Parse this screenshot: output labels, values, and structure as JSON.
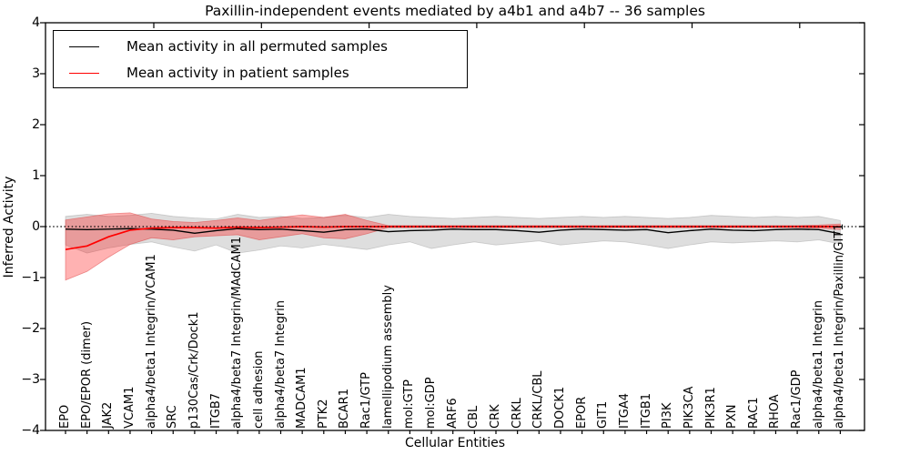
{
  "title": "Paxillin-independent events mediated by a4b1 and a4b7 -- 36 samples",
  "axes": {
    "x_label": "Cellular Entities",
    "y_label": "Inferred Activity",
    "y_tick_labels": [
      "4",
      "3",
      "2",
      "1",
      "0",
      "−1",
      "−2",
      "−3",
      "−4"
    ]
  },
  "legend": {
    "entries": [
      {
        "label": "Mean activity in all permuted samples",
        "color": "#000000"
      },
      {
        "label": "Mean activity in patient samples",
        "color": "#ff0000"
      }
    ]
  },
  "colors": {
    "permuted_line": "#000000",
    "patient_line": "#ff0000",
    "permuted_band_fill": "#000000",
    "permuted_band_opacity": 0.13,
    "permuted_band_edge": "#aaaaaa",
    "patient_band_fill": "#ff0000",
    "patient_band_opacity": 0.3,
    "patient_band_edge": "#dd4444",
    "zero_line": "#000000",
    "frame": "#000000"
  },
  "chart_data": {
    "type": "line",
    "title": "Paxillin-independent events mediated by a4b1 and a4b7 -- 36 samples",
    "xlabel": "Cellular Entities",
    "ylabel": "Inferred Activity",
    "ylim": [
      -4,
      4
    ],
    "y_ticks": [
      4,
      3,
      2,
      1,
      0,
      -1,
      -2,
      -3,
      -4
    ],
    "grid": false,
    "legend_position": "upper left",
    "zero_reference_line": 0,
    "categories": [
      "EPO",
      "EPO/EPOR (dimer)",
      "JAK2",
      "VCAM1",
      "alpha4/beta1 Integrin/VCAM1",
      "SRC",
      "p130Cas/Crk/Dock1",
      "ITGB7",
      "alpha4/beta7 Integrin/MAdCAM1",
      "cell adhesion",
      "alpha4/beta7 Integrin",
      "MADCAM1",
      "PTK2",
      "BCAR1",
      "Rac1/GTP",
      "lamellipodium assembly",
      "mol:GTP",
      "mol:GDP",
      "ARF6",
      "CBL",
      "CRK",
      "CRKL",
      "CRKL/CBL",
      "DOCK1",
      "EPOR",
      "GIT1",
      "ITGA4",
      "ITGB1",
      "PI3K",
      "PIK3CA",
      "PIK3R1",
      "PXN",
      "RAC1",
      "RHOA",
      "Rac1/GDP",
      "alpha4/beta1 Integrin",
      "alpha4/beta1 Integrin/Paxillin/GIT1"
    ],
    "series": [
      {
        "name": "Mean activity in all permuted samples",
        "color": "#000000",
        "values": [
          -0.05,
          -0.06,
          -0.05,
          -0.04,
          -0.05,
          -0.07,
          -0.13,
          -0.08,
          -0.04,
          -0.06,
          -0.05,
          -0.08,
          -0.11,
          -0.06,
          -0.05,
          -0.1,
          -0.08,
          -0.07,
          -0.05,
          -0.06,
          -0.06,
          -0.08,
          -0.11,
          -0.07,
          -0.05,
          -0.06,
          -0.07,
          -0.06,
          -0.12,
          -0.08,
          -0.05,
          -0.07,
          -0.08,
          -0.06,
          -0.05,
          -0.06,
          -0.14
        ]
      },
      {
        "name": "Mean activity in patient samples",
        "color": "#ff0000",
        "values": [
          -0.45,
          -0.38,
          -0.2,
          -0.07,
          -0.03,
          -0.02,
          -0.02,
          -0.03,
          -0.01,
          -0.02,
          -0.01,
          0.0,
          -0.01,
          0.0,
          0.0,
          0.0,
          0.0,
          0.0,
          0.0,
          0.0,
          0.0,
          0.0,
          0.0,
          0.0,
          0.0,
          0.0,
          0.0,
          0.0,
          0.0,
          0.0,
          0.0,
          0.0,
          0.0,
          0.0,
          0.0,
          0.0,
          0.0
        ]
      }
    ],
    "bands": [
      {
        "name": "permuted samples range",
        "upper": [
          0.2,
          0.24,
          0.2,
          0.22,
          0.26,
          0.2,
          0.17,
          0.15,
          0.24,
          0.18,
          0.2,
          0.16,
          0.18,
          0.22,
          0.18,
          0.24,
          0.2,
          0.18,
          0.16,
          0.18,
          0.2,
          0.18,
          0.16,
          0.18,
          0.2,
          0.18,
          0.2,
          0.18,
          0.16,
          0.18,
          0.22,
          0.2,
          0.18,
          0.2,
          0.18,
          0.2,
          0.12
        ],
        "lower": [
          -0.36,
          -0.52,
          -0.42,
          -0.35,
          -0.3,
          -0.4,
          -0.48,
          -0.36,
          -0.52,
          -0.46,
          -0.38,
          -0.42,
          -0.35,
          -0.4,
          -0.45,
          -0.36,
          -0.3,
          -0.43,
          -0.36,
          -0.3,
          -0.36,
          -0.32,
          -0.28,
          -0.36,
          -0.32,
          -0.28,
          -0.3,
          -0.36,
          -0.43,
          -0.36,
          -0.3,
          -0.32,
          -0.3,
          -0.28,
          -0.3,
          -0.26,
          -0.34
        ]
      },
      {
        "name": "patient samples range",
        "upper": [
          0.13,
          0.19,
          0.25,
          0.27,
          0.15,
          0.1,
          0.08,
          0.12,
          0.17,
          0.12,
          0.18,
          0.23,
          0.18,
          0.24,
          0.12,
          0.02,
          0.02,
          0.02,
          0.02,
          0.02,
          0.02,
          0.02,
          0.02,
          0.02,
          0.02,
          0.02,
          0.02,
          0.02,
          0.02,
          0.02,
          0.02,
          0.02,
          0.02,
          0.02,
          0.02,
          0.03,
          0.05
        ],
        "lower": [
          -1.05,
          -0.88,
          -0.6,
          -0.35,
          -0.22,
          -0.26,
          -0.2,
          -0.18,
          -0.16,
          -0.26,
          -0.2,
          -0.14,
          -0.22,
          -0.24,
          -0.14,
          -0.02,
          -0.02,
          -0.02,
          -0.02,
          -0.02,
          -0.02,
          -0.02,
          -0.02,
          -0.02,
          -0.02,
          -0.02,
          -0.02,
          -0.02,
          -0.02,
          -0.02,
          -0.02,
          -0.02,
          -0.02,
          -0.02,
          -0.02,
          -0.03,
          -0.06
        ]
      }
    ]
  }
}
